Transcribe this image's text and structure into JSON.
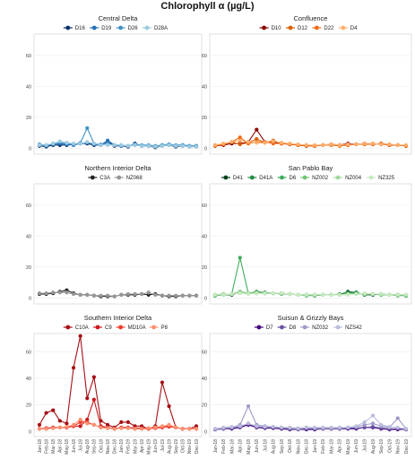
{
  "title": "Chlorophyll α (µg/L)",
  "x_labels": [
    "Jan-18",
    "Feb-18",
    "Mar-18",
    "Apr-18",
    "May-18",
    "Jun-18",
    "Jul-18",
    "Aug-18",
    "Sep-18",
    "Oct-18",
    "Nov-18",
    "Dec-18",
    "Jan-19",
    "Feb-19",
    "Mar-19",
    "Apr-19",
    "May-19",
    "Jun-19",
    "Jul-19",
    "Aug-19",
    "Sep-19",
    "Oct-19",
    "Nov-19",
    "Dec-19"
  ],
  "chart_data": [
    {
      "type": "line",
      "title": "Central Delta",
      "ylim": [
        0,
        70
      ],
      "yticks": [
        0,
        20,
        40,
        60
      ],
      "grid": true,
      "legend": "top",
      "series": [
        {
          "name": "D16",
          "color": "#08306b",
          "values": [
            1.5,
            1,
            2,
            2,
            2,
            2.5,
            3,
            3,
            2,
            2,
            4.5,
            1.5,
            1.5,
            1,
            3,
            1.5,
            1.5,
            0.5,
            1.5,
            2,
            1,
            1.5,
            1,
            1
          ]
        },
        {
          "name": "D19",
          "color": "#2171b5",
          "values": [
            2,
            1.5,
            2.5,
            3,
            2.5,
            2,
            3,
            3.5,
            2.5,
            2,
            5,
            2,
            1.5,
            1.5,
            2,
            1.5,
            1.5,
            1,
            2,
            2.5,
            1.5,
            2,
            1.5,
            1.5
          ]
        },
        {
          "name": "D26",
          "color": "#4292c6",
          "values": [
            2.5,
            2,
            3,
            4,
            3,
            2.5,
            3.5,
            13,
            3,
            2.5,
            3,
            2,
            2,
            1.5,
            2.5,
            2,
            2,
            1.5,
            2,
            2.5,
            2,
            2,
            1.5,
            1.5
          ]
        },
        {
          "name": "D28A",
          "color": "#9ecae1",
          "values": [
            2,
            2,
            3,
            4.5,
            3.5,
            3,
            3,
            4,
            3,
            2,
            2,
            2,
            2,
            1.5,
            2,
            1.5,
            1.5,
            1,
            1.5,
            2,
            1.5,
            1.5,
            1,
            1
          ]
        }
      ]
    },
    {
      "type": "line",
      "title": "Confluence",
      "ylim": [
        0,
        70
      ],
      "yticks": [
        0,
        20,
        40,
        60
      ],
      "grid": true,
      "legend": "top",
      "series": [
        {
          "name": "D10",
          "color": "#8b0000",
          "values": [
            1.5,
            2,
            3,
            3,
            4,
            12,
            4,
            4,
            3,
            2.5,
            2,
            1.5,
            1.5,
            2,
            2.5,
            2,
            3,
            2.5,
            3,
            2.5,
            3,
            2,
            2,
            1.5
          ]
        },
        {
          "name": "D12",
          "color": "#d95f02",
          "values": [
            1.5,
            2.5,
            4,
            2.5,
            3.5,
            6,
            3.5,
            5,
            3,
            2.5,
            2,
            1.5,
            1.5,
            2,
            2,
            1.5,
            2,
            2.5,
            2.5,
            3,
            2.5,
            2,
            2,
            1.5
          ]
        },
        {
          "name": "D22",
          "color": "#f16913",
          "values": [
            2,
            2.5,
            4,
            7,
            3,
            4,
            4,
            3,
            3,
            2.5,
            2,
            2,
            1.5,
            2,
            2.5,
            2,
            2,
            2.5,
            2.5,
            2.5,
            3,
            2.5,
            2,
            1.5
          ]
        },
        {
          "name": "D4",
          "color": "#fdae6b",
          "values": [
            2,
            3,
            4,
            5,
            4,
            3.5,
            3.5,
            4.5,
            3.5,
            3,
            2.5,
            2,
            2,
            2,
            2.5,
            2,
            2.5,
            2.5,
            3,
            3,
            2.5,
            2.5,
            2,
            2
          ]
        }
      ]
    },
    {
      "type": "line",
      "title": "Northern Interior Delta",
      "ylim": [
        0,
        70
      ],
      "yticks": [
        0,
        20,
        40,
        60
      ],
      "grid": true,
      "legend": "top",
      "series": [
        {
          "name": "C3A",
          "color": "#252525",
          "values": [
            2.5,
            2.5,
            3,
            4,
            5,
            3,
            2,
            2,
            1.5,
            1,
            1,
            1,
            2,
            2,
            2,
            2.5,
            2,
            2.5,
            1.5,
            1,
            1,
            1.5,
            1.5,
            1.5
          ]
        },
        {
          "name": "NZ068",
          "color": "#969696",
          "values": [
            3,
            3,
            3.5,
            3.5,
            3.5,
            2.5,
            2,
            2,
            1.5,
            1.5,
            1.5,
            1,
            2,
            2.5,
            2.5,
            2.5,
            3.5,
            2,
            1.5,
            1.5,
            1.5,
            1.5,
            1.5,
            1.5
          ]
        }
      ]
    },
    {
      "type": "line",
      "title": "San Pablo Bay",
      "ylim": [
        0,
        70
      ],
      "yticks": [
        0,
        20,
        40,
        60
      ],
      "grid": true,
      "legend": "top",
      "series": [
        {
          "name": "D41",
          "color": "#00441b",
          "values": [
            1.5,
            2,
            2,
            3.5,
            3,
            3.5,
            3,
            3,
            3,
            2.5,
            2,
            2,
            1.5,
            2,
            2,
            2,
            4,
            3.5,
            2,
            2,
            2.5,
            2,
            2,
            1.5
          ]
        },
        {
          "name": "D41A",
          "color": "#238b45",
          "values": [
            2,
            2.5,
            2.5,
            4,
            3,
            4,
            3.5,
            3,
            3,
            2.5,
            2,
            2,
            2,
            2,
            2,
            2.5,
            3.5,
            3.5,
            2,
            2.5,
            2.5,
            2,
            2,
            1.5
          ]
        },
        {
          "name": "D6",
          "color": "#41ab5d",
          "values": [
            1.5,
            2,
            2.5,
            26,
            3,
            3,
            3,
            3,
            2.5,
            2.5,
            2,
            1.5,
            1.5,
            2,
            2,
            2,
            2.5,
            3,
            2.5,
            2.5,
            2,
            2,
            1.5,
            1.5
          ]
        },
        {
          "name": "NZ002",
          "color": "#74c476",
          "values": [
            2,
            2,
            2.5,
            4,
            3,
            3.5,
            3,
            3,
            3,
            2.5,
            2,
            2,
            2,
            2,
            2,
            2,
            2.5,
            2.5,
            2.5,
            2.5,
            2.5,
            2,
            2,
            2
          ]
        },
        {
          "name": "NZ004",
          "color": "#a1d99b",
          "values": [
            2,
            2.5,
            2.5,
            3.5,
            3,
            3,
            3,
            3,
            3,
            2.5,
            2,
            2,
            2,
            2,
            2,
            2,
            2.5,
            2.5,
            2.5,
            2.5,
            2.5,
            2,
            2,
            2
          ]
        },
        {
          "name": "NZ325",
          "color": "#c7e9c0",
          "values": [
            2,
            2,
            2.5,
            3,
            2.5,
            3,
            3,
            3,
            3,
            2.5,
            2,
            2,
            2,
            2,
            2,
            2,
            2,
            2.5,
            3,
            2.5,
            2.5,
            2,
            2,
            2
          ]
        }
      ]
    },
    {
      "type": "line",
      "title": "Southern Interior Delta",
      "ylim": [
        0,
        70
      ],
      "yticks": [
        0,
        20,
        40,
        60
      ],
      "grid": true,
      "legend": "top",
      "series": [
        {
          "name": "C10A",
          "color": "#a50f15",
          "values": [
            5,
            14,
            16,
            8,
            6,
            48,
            72,
            25,
            41,
            8,
            5,
            3,
            7,
            7,
            4,
            4,
            2,
            4,
            37,
            19,
            3,
            2,
            2,
            4
          ]
        },
        {
          "name": "C9",
          "color": "#cb181d",
          "values": [
            2,
            2.5,
            3,
            3,
            3,
            4,
            4,
            9,
            24,
            4,
            3,
            2,
            3,
            3,
            2.5,
            2.5,
            2.5,
            2.5,
            3,
            4,
            3,
            2,
            2,
            2
          ]
        },
        {
          "name": "MD10A",
          "color": "#ef3b2c",
          "values": [
            2,
            2,
            2.5,
            3,
            3,
            4,
            7,
            7,
            5,
            3,
            2.5,
            2,
            2.5,
            2.5,
            2,
            2,
            2,
            2.5,
            3,
            3.5,
            3,
            2,
            2,
            2
          ]
        },
        {
          "name": "P8",
          "color": "#fc9272",
          "values": [
            2,
            2,
            2.5,
            3,
            3.5,
            5,
            9,
            6,
            5,
            3,
            2.5,
            2,
            2.5,
            2.5,
            2,
            2,
            2.5,
            3,
            4,
            5,
            3,
            2,
            2,
            2
          ]
        }
      ]
    },
    {
      "type": "line",
      "title": "Suisun & Grizzly Bays",
      "ylim": [
        0,
        70
      ],
      "yticks": [
        0,
        20,
        40,
        60
      ],
      "grid": true,
      "legend": "top",
      "series": [
        {
          "name": "D7",
          "color": "#3f007d",
          "values": [
            1.5,
            2,
            2,
            3,
            5,
            3,
            2.5,
            2.5,
            2,
            1.5,
            1.5,
            1.5,
            1.5,
            2,
            2,
            2,
            2,
            2,
            3,
            3,
            2,
            1.5,
            1.5,
            1.5
          ]
        },
        {
          "name": "D8",
          "color": "#6a51a3",
          "values": [
            1.5,
            2,
            2.5,
            3.5,
            6,
            3.5,
            3,
            3,
            2.5,
            2,
            1.5,
            2,
            2,
            2,
            2,
            2,
            2.5,
            2.5,
            3,
            3.5,
            2.5,
            2,
            2,
            1.5
          ]
        },
        {
          "name": "NZ032",
          "color": "#9e9ac8",
          "values": [
            2,
            2.5,
            3,
            5,
            19,
            5,
            4,
            3.5,
            3,
            2.5,
            2,
            3,
            2.5,
            2.5,
            2.5,
            2.5,
            3,
            3.5,
            5,
            6,
            4,
            3,
            10,
            2
          ]
        },
        {
          "name": "NZS42",
          "color": "#bcbddc",
          "values": [
            2,
            3,
            3.5,
            4,
            6,
            4,
            3.5,
            3.5,
            3,
            3,
            2.5,
            3,
            3,
            3,
            3,
            3,
            3,
            4,
            7,
            12,
            5,
            3.5,
            3,
            2
          ]
        }
      ]
    }
  ]
}
